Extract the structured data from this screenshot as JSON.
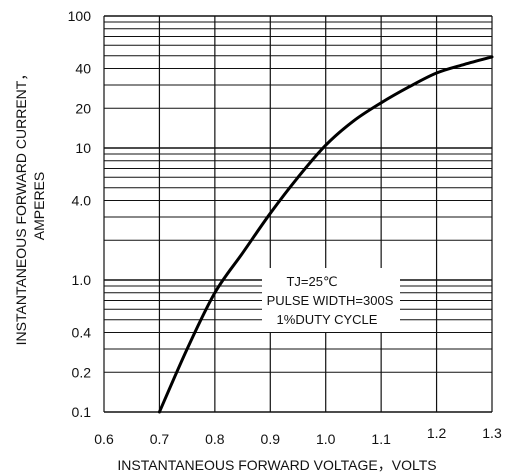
{
  "chart_data": {
    "type": "line",
    "title": "",
    "xlabel": "INSTANTANEOUS FORWARD VOLTAGE，VOLTS",
    "ylabel": "INSTANTANEOUS FORWARD CURRENT，",
    "ylabel_unit": "AMPERES",
    "x_scale": "linear",
    "y_scale": "log",
    "xlim": [
      0.6,
      1.3
    ],
    "ylim": [
      0.1,
      100
    ],
    "x_ticks": [
      0.6,
      0.7,
      0.8,
      0.9,
      1.0,
      1.1,
      1.2,
      1.3
    ],
    "x_tick_labels": [
      "0.6",
      "0.7",
      "0.8",
      "0.9",
      "1.0",
      "1.1",
      "1.2",
      "1.3"
    ],
    "y_ticks": [
      0.1,
      0.2,
      0.4,
      1.0,
      4.0,
      10,
      20,
      40,
      100
    ],
    "y_tick_labels": [
      "0.1",
      "0.2",
      "0.4",
      "1.0",
      "4.0",
      "10",
      "20",
      "40",
      "100"
    ],
    "grid": true,
    "annotation": {
      "lines": [
        "TJ=25℃",
        "PULSE WIDTH=300S",
        "1%DUTY CYCLE"
      ]
    },
    "series": [
      {
        "x": [
          0.7,
          0.75,
          0.8,
          0.85,
          0.9,
          0.95,
          1.0,
          1.05,
          1.1,
          1.15,
          1.2,
          1.25,
          1.3
        ],
        "y": [
          0.1,
          0.3,
          0.8,
          1.6,
          3.2,
          6.0,
          10.5,
          16.0,
          22.0,
          29.0,
          37.0,
          43.0,
          49.0
        ]
      }
    ]
  }
}
